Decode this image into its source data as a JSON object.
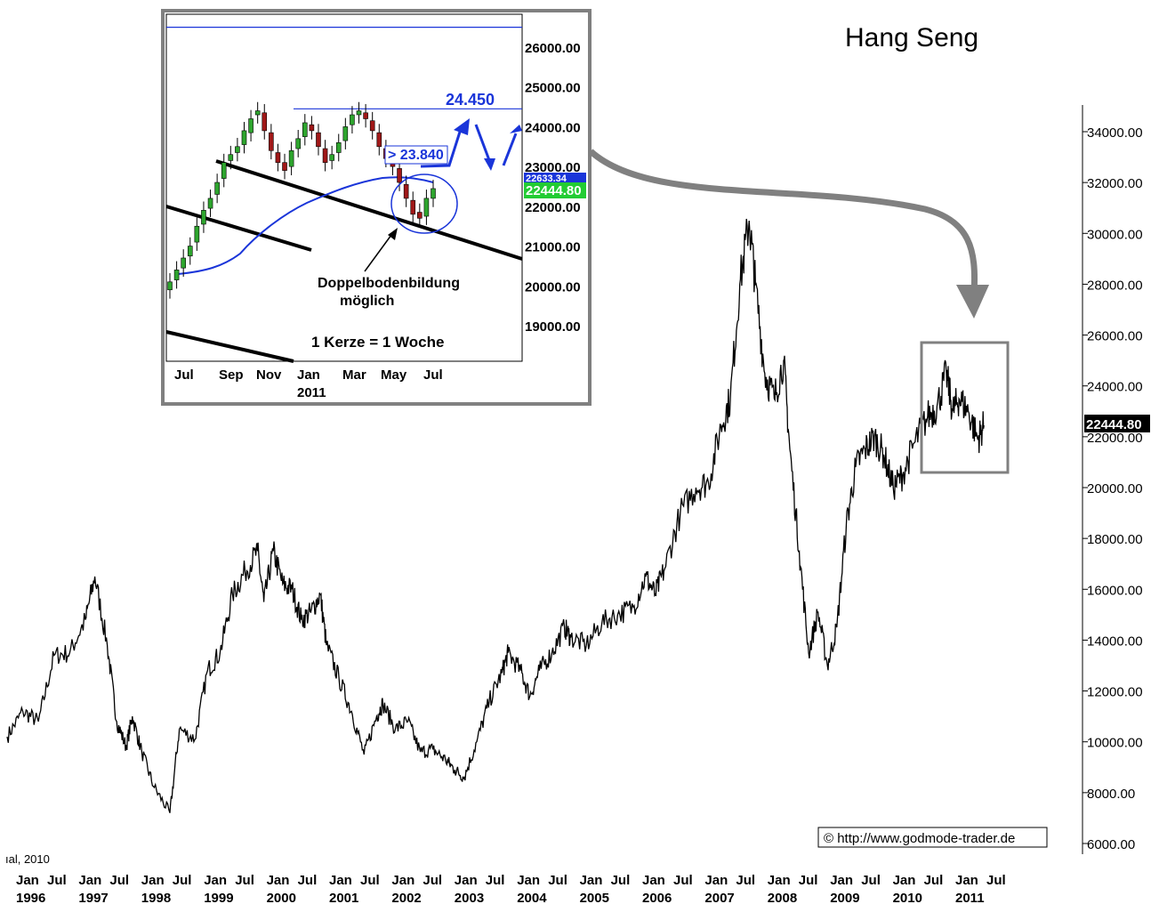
{
  "title": "Hang Seng",
  "copyright": "© http://www.godmode-trader.de",
  "source_fragment": "ıal, 2010",
  "colors": {
    "line": "#000000",
    "accent_blue": "#1a35d9",
    "frame": "#808080",
    "price_tag_green": "#22cc33"
  },
  "chart_data": [
    {
      "type": "line",
      "title": "Hang Seng",
      "y_axis_ticks": [
        "34000.00",
        "32000.00",
        "30000.00",
        "28000.00",
        "26000.00",
        "24000.00",
        "22000.00",
        "20000.00",
        "18000.00",
        "16000.00",
        "14000.00",
        "12000.00",
        "10000.00",
        "8000.00",
        "6000.00"
      ],
      "y_axis_values": [
        34000,
        32000,
        30000,
        28000,
        26000,
        24000,
        22000,
        20000,
        18000,
        16000,
        14000,
        12000,
        10000,
        8000,
        6000
      ],
      "ylim": [
        5000,
        35000
      ],
      "last_price_label": "22444.80",
      "x_year_labels": [
        "1996",
        "1997",
        "1998",
        "1999",
        "2000",
        "2001",
        "2002",
        "2003",
        "2004",
        "2005",
        "2006",
        "2007",
        "2008",
        "2009",
        "2010",
        "2011"
      ],
      "x_half_labels": [
        "Jan",
        "Jul"
      ],
      "x": [
        1996.0,
        1996.25,
        1996.5,
        1996.75,
        1997.0,
        1997.25,
        1997.4,
        1997.6,
        1997.75,
        1997.9,
        1998.0,
        1998.15,
        1998.35,
        1998.6,
        1998.75,
        1999.0,
        1999.2,
        1999.4,
        1999.6,
        1999.8,
        2000.0,
        2000.1,
        2000.25,
        2000.4,
        2000.55,
        2000.7,
        2000.85,
        2001.0,
        2001.1,
        2001.3,
        2001.5,
        2001.7,
        2001.9,
        2002.0,
        2002.2,
        2002.4,
        2002.6,
        2002.8,
        2003.0,
        2003.15,
        2003.3,
        2003.5,
        2003.7,
        2003.9,
        2004.0,
        2004.2,
        2004.35,
        2004.5,
        2004.7,
        2004.9,
        2005.0,
        2005.25,
        2005.5,
        2005.75,
        2006.0,
        2006.2,
        2006.35,
        2006.5,
        2006.75,
        2007.0,
        2007.2,
        2007.4,
        2007.55,
        2007.7,
        2007.85,
        2007.95,
        2008.1,
        2008.25,
        2008.4,
        2008.5,
        2008.65,
        2008.8,
        2008.95,
        2009.1,
        2009.25,
        2009.4,
        2009.55,
        2009.7,
        2009.85,
        2010.0,
        2010.15,
        2010.3,
        2010.5,
        2010.7,
        2010.85,
        2011.0,
        2011.1,
        2011.2,
        2011.35,
        2011.5,
        2011.6
      ],
      "values": [
        10200,
        11200,
        10800,
        13400,
        13500,
        14800,
        16500,
        13800,
        10800,
        9800,
        11000,
        9600,
        8200,
        7200,
        10500,
        10100,
        12800,
        13500,
        15800,
        16700,
        17500,
        15500,
        17500,
        16200,
        16000,
        14800,
        15100,
        15800,
        13800,
        12500,
        11200,
        9500,
        11000,
        11500,
        10500,
        10800,
        9600,
        9700,
        9300,
        8900,
        8600,
        10000,
        11600,
        12700,
        13500,
        12800,
        11800,
        12800,
        13500,
        14500,
        14100,
        13800,
        14700,
        15000,
        15300,
        16500,
        15800,
        16800,
        19000,
        20000,
        20200,
        22400,
        23500,
        28000,
        30500,
        28000,
        24500,
        23500,
        25000,
        21500,
        17500,
        13500,
        15100,
        13000,
        14500,
        18500,
        20800,
        21500,
        22000,
        21300,
        20000,
        20500,
        21800,
        22800,
        23200,
        24500,
        23000,
        23500,
        23000,
        21900,
        22444.8
      ]
    },
    {
      "type": "candlestick",
      "title": "",
      "note_label": "1 Kerze = 1 Woche",
      "y_axis_ticks": [
        "26000.00",
        "25000.00",
        "24000.00",
        "23000.00",
        "22000.00",
        "21000.00",
        "20000.00",
        "19000.00"
      ],
      "y_axis_values": [
        26000,
        25000,
        24000,
        23000,
        22000,
        21000,
        20000,
        19000
      ],
      "ylim": [
        18200,
        27300
      ],
      "x_month_labels": [
        "Jul",
        "Sep",
        "Nov",
        "Jan",
        "Mar",
        "May",
        "Jul"
      ],
      "x_year_label": "2011",
      "resistance_top": 26500,
      "resistance_label": "24.450",
      "resistance_value": 24450,
      "trigger_label": "> 23.840",
      "trigger_value": 23840,
      "ma_tag": "22633.34",
      "last_price_label": "22444.80",
      "annotation": [
        "Doppelbodenbildung",
        "möglich"
      ],
      "closes": [
        20100,
        20400,
        20700,
        21000,
        21500,
        21900,
        22200,
        22600,
        23100,
        23300,
        23500,
        23900,
        24200,
        24400,
        23900,
        23400,
        23100,
        22900,
        23400,
        23700,
        24100,
        23900,
        23500,
        23100,
        23300,
        23600,
        24000,
        24300,
        24400,
        24200,
        23900,
        23500,
        23200,
        23000,
        22600,
        22200,
        21800,
        21700,
        22200,
        22444.8
      ],
      "opens": [
        19900,
        20150,
        20450,
        20750,
        21100,
        21550,
        21950,
        22300,
        22700,
        23150,
        23350,
        23550,
        23850,
        24300,
        24350,
        23850,
        23350,
        23100,
        23000,
        23450,
        23750,
        24050,
        23850,
        23450,
        23150,
        23350,
        23650,
        24050,
        24300,
        24350,
        24150,
        23850,
        23450,
        23250,
        22950,
        22550,
        22150,
        21850,
        21750,
        22200
      ]
    }
  ]
}
